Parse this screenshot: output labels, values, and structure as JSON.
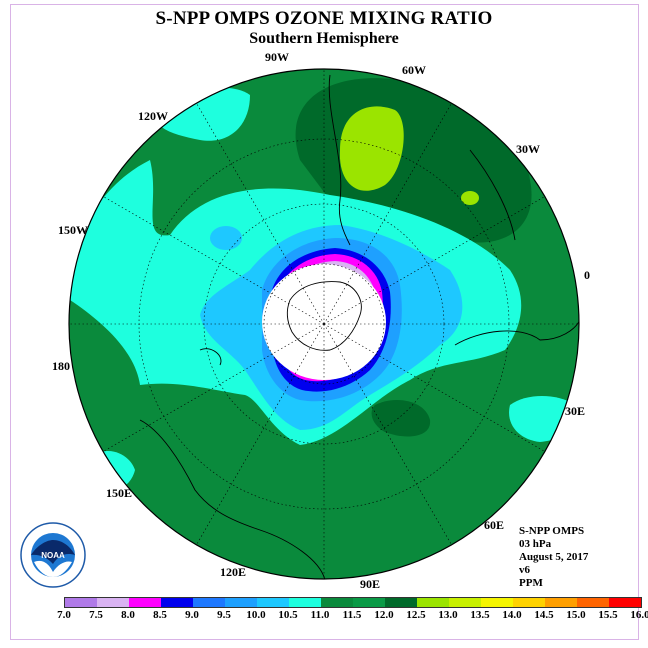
{
  "title": "S-NPP OMPS OZONE MIXING RATIO",
  "subtitle": "Southern Hemisphere",
  "longitude_labels": [
    "90W",
    "60W",
    "30W",
    "120W",
    "150W",
    "0",
    "180",
    "30E",
    "150E",
    "60E",
    "120E",
    "90E"
  ],
  "info": {
    "instrument": "S-NPP OMPS",
    "level": "03 hPa",
    "date": "August 5, 2017",
    "version": "v6",
    "units": "PPM"
  },
  "logo_text": "NOAA",
  "colorbar": {
    "ticks": [
      "7.0",
      "7.5",
      "8.0",
      "8.5",
      "9.0",
      "9.5",
      "10.0",
      "10.5",
      "11.0",
      "11.5",
      "12.0",
      "12.5",
      "13.0",
      "13.5",
      "14.0",
      "14.5",
      "15.0",
      "15.5",
      "16.0"
    ],
    "colors": [
      "#b07ae8",
      "#d9b3f2",
      "#ff00ff",
      "#0000ee",
      "#1e78ff",
      "#1ea0ff",
      "#1ec8ff",
      "#1effde",
      "#0a8a3c",
      "#0a9a46",
      "#006a2a",
      "#9be400",
      "#c8f000",
      "#f5f500",
      "#ffd200",
      "#ff9f00",
      "#ff6400",
      "#ff0000",
      "#7a4a32"
    ]
  }
}
